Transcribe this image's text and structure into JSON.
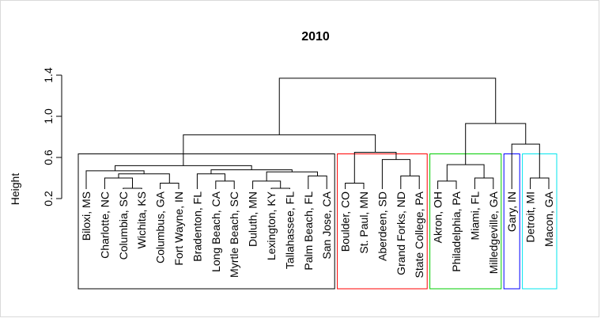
{
  "chart_data": {
    "type": "dendrogram",
    "title": "2010",
    "ylabel": "Height",
    "xlabel": "",
    "ylim": [
      0.2,
      1.4
    ],
    "yticks": [
      "0.2",
      "0.6",
      "1.0",
      "1.4"
    ],
    "leaves": [
      "Biloxi, MS",
      "Charlotte, NC",
      "Columbia, SC",
      "Wichita, KS",
      "Columbus, GA",
      "Fort Wayne, IN",
      "Bradenton, FL",
      "Long Beach, CA",
      "Myrtle Beach, SC",
      "Duluth, MN",
      "Lexington, KY",
      "Tallahassee, FL",
      "Palm Beach, FL",
      "San Jose, CA",
      "Boulder, CO",
      "St. Paul, MN",
      "Aberdeen, SD",
      "Grand Forks, ND",
      "State College, PA",
      "Akron, OH",
      "Philadelphia, PA",
      "Miami, FL",
      "Milledgeville, GA",
      "Gary, IN",
      "Detroit, MI",
      "Macon, GA"
    ],
    "merges": [
      {
        "left": 2,
        "right": 3,
        "height": 0.3
      },
      {
        "left": 10,
        "right": 11,
        "height": 0.3
      },
      {
        "left": 14,
        "right": 15,
        "height": 0.35
      },
      {
        "left": 4,
        "right": 5,
        "height": 0.35
      },
      {
        "left": 7,
        "right": 8,
        "height": 0.37
      },
      {
        "left": 9,
        "right": "m1",
        "height": 0.37
      },
      {
        "left": 19,
        "right": 20,
        "height": 0.37
      },
      {
        "left": 21,
        "right": 22,
        "height": 0.4
      },
      {
        "left": 24,
        "right": 25,
        "height": 0.4
      },
      {
        "left": 1,
        "right": "m0",
        "height": 0.4
      },
      {
        "left": 12,
        "right": 13,
        "height": 0.42
      },
      {
        "left": 17,
        "right": 18,
        "height": 0.42
      },
      {
        "left": "m9",
        "right": "m3",
        "height": 0.44
      },
      {
        "left": 6,
        "right": "m4",
        "height": 0.44
      },
      {
        "left": "m5",
        "right": "m10",
        "height": 0.46
      },
      {
        "left": "m13",
        "right": "m14",
        "height": 0.48
      },
      {
        "left": 0,
        "right": "m12",
        "height": 0.47
      },
      {
        "left": "m16",
        "right": "m15",
        "height": 0.52
      },
      {
        "left": 16,
        "right": "m11",
        "height": 0.58
      },
      {
        "left": "m6",
        "right": "m7",
        "height": 0.53
      },
      {
        "left": "m2",
        "right": "m18",
        "height": 0.65
      },
      {
        "left": 23,
        "right": "m8",
        "height": 0.73
      },
      {
        "left": "m17",
        "right": "m20",
        "height": 0.82
      },
      {
        "left": "m19",
        "right": "m21",
        "height": 0.93
      },
      {
        "left": "m22",
        "right": "m23",
        "height": 1.37
      }
    ],
    "cluster_boxes": [
      {
        "from": 0,
        "to": 13,
        "color": "#000000"
      },
      {
        "from": 14,
        "to": 18,
        "color": "#ff0000"
      },
      {
        "from": 19,
        "to": 22,
        "color": "#00cd00"
      },
      {
        "from": 23,
        "to": 23,
        "color": "#0000ff"
      },
      {
        "from": 24,
        "to": 25,
        "color": "#00e5ee"
      }
    ]
  }
}
